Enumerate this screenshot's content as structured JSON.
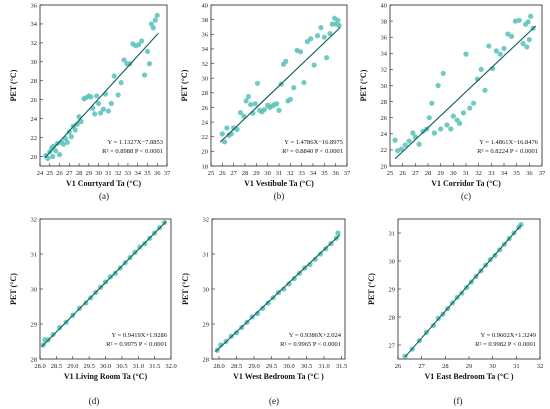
{
  "chart_data": [
    {
      "type": "scatter",
      "caption": "(a)",
      "xlabel": "V1 Courtyard Ta (°C)",
      "ylabel": "PET (°C)",
      "xlim": [
        24,
        37
      ],
      "ylim": [
        19,
        36
      ],
      "xticks": [
        "24",
        "25",
        "26",
        "27",
        "28",
        "29",
        "30",
        "31",
        "32",
        "33",
        "34",
        "35",
        "36",
        "37"
      ],
      "yticks": [
        "20",
        "22",
        "24",
        "26",
        "28",
        "30",
        "32",
        "34",
        "36"
      ],
      "equation": "Y = 1.1327X−7.8853",
      "stats": "R² = 0.8988  P < 0.0001",
      "fit": {
        "slope": 1.1327,
        "intercept": -7.8853,
        "x_range": [
          24.5,
          36.1
        ]
      },
      "points": [
        [
          24.6,
          20.1
        ],
        [
          24.8,
          19.8
        ],
        [
          25.0,
          20.5
        ],
        [
          25.2,
          20.9
        ],
        [
          25.3,
          20.0
        ],
        [
          25.4,
          21.1
        ],
        [
          25.6,
          20.6
        ],
        [
          25.8,
          21.4
        ],
        [
          26.0,
          20.2
        ],
        [
          26.2,
          21.5
        ],
        [
          26.4,
          21.3
        ],
        [
          26.6,
          21.9
        ],
        [
          26.8,
          21.5
        ],
        [
          27.0,
          22.6
        ],
        [
          27.2,
          22.1
        ],
        [
          27.4,
          23.2
        ],
        [
          27.6,
          22.8
        ],
        [
          27.8,
          23.4
        ],
        [
          28.0,
          24.2
        ],
        [
          28.2,
          23.7
        ],
        [
          28.5,
          26.1
        ],
        [
          28.7,
          26.2
        ],
        [
          29.0,
          26.4
        ],
        [
          29.2,
          26.3
        ],
        [
          29.4,
          25.1
        ],
        [
          29.6,
          24.5
        ],
        [
          29.8,
          26.4
        ],
        [
          30.0,
          25.6
        ],
        [
          30.2,
          24.6
        ],
        [
          30.5,
          25.0
        ],
        [
          30.7,
          26.6
        ],
        [
          31.0,
          24.8
        ],
        [
          31.3,
          25.6
        ],
        [
          31.6,
          28.5
        ],
        [
          32.0,
          26.5
        ],
        [
          32.3,
          27.8
        ],
        [
          32.6,
          30.2
        ],
        [
          32.9,
          29.8
        ],
        [
          33.2,
          29.8
        ],
        [
          33.5,
          31.9
        ],
        [
          33.8,
          31.7
        ],
        [
          34.1,
          31.8
        ],
        [
          34.4,
          32.2
        ],
        [
          34.7,
          28.6
        ],
        [
          35.0,
          31.1
        ],
        [
          35.2,
          29.8
        ],
        [
          35.4,
          34.0
        ],
        [
          35.6,
          33.6
        ],
        [
          35.8,
          34.4
        ],
        [
          36.0,
          34.9
        ]
      ]
    },
    {
      "type": "scatter",
      "caption": "(b)",
      "xlabel": "V1 Vestibule Ta (°C)",
      "ylabel": "PET (°C)",
      "xlim": [
        25,
        37
      ],
      "ylim": [
        18,
        40
      ],
      "xticks": [
        "25",
        "26",
        "27",
        "28",
        "29",
        "30",
        "31",
        "32",
        "33",
        "34",
        "35",
        "36",
        "37"
      ],
      "yticks": [
        "18",
        "20",
        "22",
        "24",
        "26",
        "28",
        "30",
        "32",
        "34",
        "36",
        "38",
        "40"
      ],
      "equation": "Y = 1.4786X−16.8975",
      "stats": "R² = 0.8840  P < 0.0001",
      "fit": {
        "slope": 1.4786,
        "intercept": -16.8975,
        "x_range": [
          25.8,
          36.4
        ]
      },
      "points": [
        [
          26.0,
          22.4
        ],
        [
          26.2,
          21.3
        ],
        [
          26.4,
          23.2
        ],
        [
          26.6,
          22.2
        ],
        [
          26.8,
          22.4
        ],
        [
          27.0,
          23.2
        ],
        [
          27.3,
          23.0
        ],
        [
          27.6,
          25.3
        ],
        [
          27.9,
          24.8
        ],
        [
          28.1,
          26.9
        ],
        [
          28.3,
          27.5
        ],
        [
          28.5,
          26.4
        ],
        [
          28.7,
          25.2
        ],
        [
          28.9,
          26.5
        ],
        [
          29.1,
          29.3
        ],
        [
          29.3,
          25.6
        ],
        [
          29.5,
          25.4
        ],
        [
          29.7,
          25.7
        ],
        [
          30.0,
          26.3
        ],
        [
          30.2,
          26.0
        ],
        [
          30.4,
          26.2
        ],
        [
          30.6,
          26.4
        ],
        [
          30.8,
          26.5
        ],
        [
          31.0,
          25.6
        ],
        [
          31.2,
          29.2
        ],
        [
          31.4,
          31.9
        ],
        [
          31.6,
          32.3
        ],
        [
          31.8,
          26.9
        ],
        [
          32.0,
          27.1
        ],
        [
          32.3,
          28.7
        ],
        [
          32.6,
          33.8
        ],
        [
          32.9,
          33.6
        ],
        [
          33.2,
          29.4
        ],
        [
          33.5,
          35.0
        ],
        [
          33.8,
          35.4
        ],
        [
          34.1,
          31.8
        ],
        [
          34.4,
          35.8
        ],
        [
          34.7,
          36.9
        ],
        [
          35.0,
          35.6
        ],
        [
          35.2,
          32.8
        ],
        [
          35.5,
          36.1
        ],
        [
          35.7,
          37.4
        ],
        [
          35.9,
          38.2
        ],
        [
          36.0,
          37.4
        ],
        [
          36.2,
          37.9
        ],
        [
          36.3,
          37.2
        ]
      ]
    },
    {
      "type": "scatter",
      "caption": "(c)",
      "xlabel": "V1 Corridor Ta (°C)",
      "ylabel": "PET (°C)",
      "xlim": [
        25,
        37
      ],
      "ylim": [
        20,
        40
      ],
      "xticks": [
        "25",
        "26",
        "27",
        "28",
        "29",
        "30",
        "31",
        "32",
        "33",
        "34",
        "35",
        "36",
        "37"
      ],
      "yticks": [
        "20",
        "22",
        "24",
        "26",
        "28",
        "30",
        "32",
        "34",
        "36",
        "38",
        "40"
      ],
      "equation": "Y = 1.4861X−16.8476",
      "stats": "R² = 0.8224  P < 0.0001",
      "fit": {
        "slope": 1.4861,
        "intercept": -16.8476,
        "x_range": [
          25.4,
          36.5
        ]
      },
      "points": [
        [
          25.4,
          23.2
        ],
        [
          25.6,
          21.9
        ],
        [
          25.9,
          22.1
        ],
        [
          26.2,
          22.6
        ],
        [
          26.5,
          23.1
        ],
        [
          26.8,
          24.1
        ],
        [
          27.0,
          23.6
        ],
        [
          27.3,
          22.7
        ],
        [
          27.6,
          24.3
        ],
        [
          27.9,
          24.6
        ],
        [
          28.1,
          26.0
        ],
        [
          28.3,
          27.8
        ],
        [
          28.5,
          24.1
        ],
        [
          28.8,
          30.0
        ],
        [
          29.0,
          24.6
        ],
        [
          29.2,
          31.5
        ],
        [
          29.5,
          25.1
        ],
        [
          29.8,
          24.6
        ],
        [
          30.0,
          26.2
        ],
        [
          30.3,
          25.7
        ],
        [
          30.5,
          25.3
        ],
        [
          30.8,
          26.6
        ],
        [
          31.0,
          33.9
        ],
        [
          31.3,
          27.2
        ],
        [
          31.6,
          27.8
        ],
        [
          31.9,
          30.8
        ],
        [
          32.2,
          32.0
        ],
        [
          32.5,
          29.4
        ],
        [
          32.8,
          34.9
        ],
        [
          33.1,
          32.1
        ],
        [
          33.4,
          34.3
        ],
        [
          33.7,
          33.9
        ],
        [
          34.0,
          34.6
        ],
        [
          34.3,
          36.4
        ],
        [
          34.6,
          36.1
        ],
        [
          34.9,
          38.0
        ],
        [
          35.2,
          38.1
        ],
        [
          35.5,
          35.2
        ],
        [
          35.7,
          37.6
        ],
        [
          35.9,
          37.9
        ],
        [
          36.1,
          38.6
        ],
        [
          36.3,
          37.1
        ],
        [
          35.8,
          34.8
        ],
        [
          36.0,
          35.7
        ]
      ]
    },
    {
      "type": "scatter",
      "caption": "(d)",
      "xlabel": "V1 Living Room Ta (°C)",
      "ylabel": "PET (°C)",
      "xlim": [
        28.0,
        32.0
      ],
      "ylim": [
        28,
        32
      ],
      "xticks": [
        "28.0",
        "28.5",
        "29.0",
        "29.5",
        "30.0",
        "30.5",
        "31.0",
        "31.5",
        "32.0"
      ],
      "yticks": [
        "28",
        "29",
        "30",
        "31",
        "32"
      ],
      "equation": "Y = 0.9419X+1.9286",
      "stats": "R² = 0.9975  P < 0.0001",
      "fit": {
        "slope": 0.9419,
        "intercept": 1.9286,
        "x_range": [
          28.05,
          31.85
        ]
      },
      "points": [
        [
          28.1,
          28.4
        ],
        [
          28.15,
          28.55
        ],
        [
          28.25,
          28.55
        ],
        [
          28.4,
          28.7
        ],
        [
          28.6,
          28.9
        ],
        [
          28.8,
          29.05
        ],
        [
          29.0,
          29.25
        ],
        [
          29.2,
          29.45
        ],
        [
          29.4,
          29.6
        ],
        [
          29.55,
          29.75
        ],
        [
          29.7,
          29.9
        ],
        [
          29.85,
          30.05
        ],
        [
          30.0,
          30.2
        ],
        [
          30.15,
          30.35
        ],
        [
          30.3,
          30.45
        ],
        [
          30.45,
          30.6
        ],
        [
          30.6,
          30.75
        ],
        [
          30.75,
          30.9
        ],
        [
          30.9,
          31.05
        ],
        [
          31.05,
          31.2
        ],
        [
          31.2,
          31.3
        ],
        [
          31.35,
          31.45
        ],
        [
          31.5,
          31.6
        ],
        [
          31.65,
          31.75
        ],
        [
          31.8,
          31.9
        ]
      ]
    },
    {
      "type": "scatter",
      "caption": "(e)",
      "xlabel": "V1 West Bedroom Ta (°C )",
      "ylabel": "PET (°C)",
      "xlim": [
        27.8,
        31.6
      ],
      "ylim": [
        28,
        32
      ],
      "xticks": [
        "28.0",
        "28.5",
        "29.0",
        "29.5",
        "30.0",
        "30.5",
        "31.0",
        "31.5"
      ],
      "yticks": [
        "28",
        "29",
        "30",
        "31",
        "32"
      ],
      "equation": "Y = 0.9386X+2.024",
      "stats": "R² = 0.9965  P < 0.0001",
      "fit": {
        "slope": 0.9386,
        "intercept": 2.024,
        "x_range": [
          27.9,
          31.45
        ]
      },
      "points": [
        [
          27.95,
          28.25
        ],
        [
          28.05,
          28.4
        ],
        [
          28.2,
          28.5
        ],
        [
          28.35,
          28.65
        ],
        [
          28.5,
          28.75
        ],
        [
          28.65,
          28.9
        ],
        [
          28.8,
          29.05
        ],
        [
          28.95,
          29.2
        ],
        [
          29.1,
          29.3
        ],
        [
          29.25,
          29.45
        ],
        [
          29.4,
          29.6
        ],
        [
          29.55,
          29.75
        ],
        [
          29.7,
          29.9
        ],
        [
          29.85,
          30.0
        ],
        [
          30.0,
          30.15
        ],
        [
          30.15,
          30.3
        ],
        [
          30.3,
          30.45
        ],
        [
          30.45,
          30.6
        ],
        [
          30.6,
          30.7
        ],
        [
          30.75,
          30.85
        ],
        [
          30.9,
          31.0
        ],
        [
          31.05,
          31.15
        ],
        [
          31.2,
          31.3
        ],
        [
          31.35,
          31.45
        ],
        [
          31.4,
          31.6
        ]
      ]
    },
    {
      "type": "scatter",
      "caption": "(f)",
      "xlabel": "V1 East Bedroom Ta (°C )",
      "ylabel": "PET (°C)",
      "xlim": [
        26,
        32
      ],
      "ylim": [
        26.5,
        31.5
      ],
      "xticks": [
        "26",
        "27",
        "28",
        "29",
        "30",
        "31",
        "32"
      ],
      "yticks": [
        "27",
        "28",
        "29",
        "30",
        "31"
      ],
      "equation": "Y = 0.9602X+1.3249",
      "stats": "R² = 0.9982  P < 0.0001",
      "fit": {
        "slope": 0.9602,
        "intercept": 1.3249,
        "x_range": [
          26.3,
          31.2
        ]
      },
      "points": [
        [
          26.3,
          26.6
        ],
        [
          26.6,
          26.85
        ],
        [
          26.9,
          27.15
        ],
        [
          27.2,
          27.45
        ],
        [
          27.5,
          27.7
        ],
        [
          27.7,
          27.95
        ],
        [
          27.9,
          28.1
        ],
        [
          28.1,
          28.3
        ],
        [
          28.3,
          28.5
        ],
        [
          28.5,
          28.7
        ],
        [
          28.7,
          28.85
        ],
        [
          28.9,
          29.05
        ],
        [
          29.1,
          29.25
        ],
        [
          29.3,
          29.45
        ],
        [
          29.5,
          29.65
        ],
        [
          29.7,
          29.85
        ],
        [
          29.9,
          30.05
        ],
        [
          30.1,
          30.2
        ],
        [
          30.3,
          30.4
        ],
        [
          30.5,
          30.6
        ],
        [
          30.7,
          30.8
        ],
        [
          30.9,
          31.0
        ],
        [
          31.1,
          31.2
        ],
        [
          31.2,
          31.3
        ]
      ]
    }
  ]
}
